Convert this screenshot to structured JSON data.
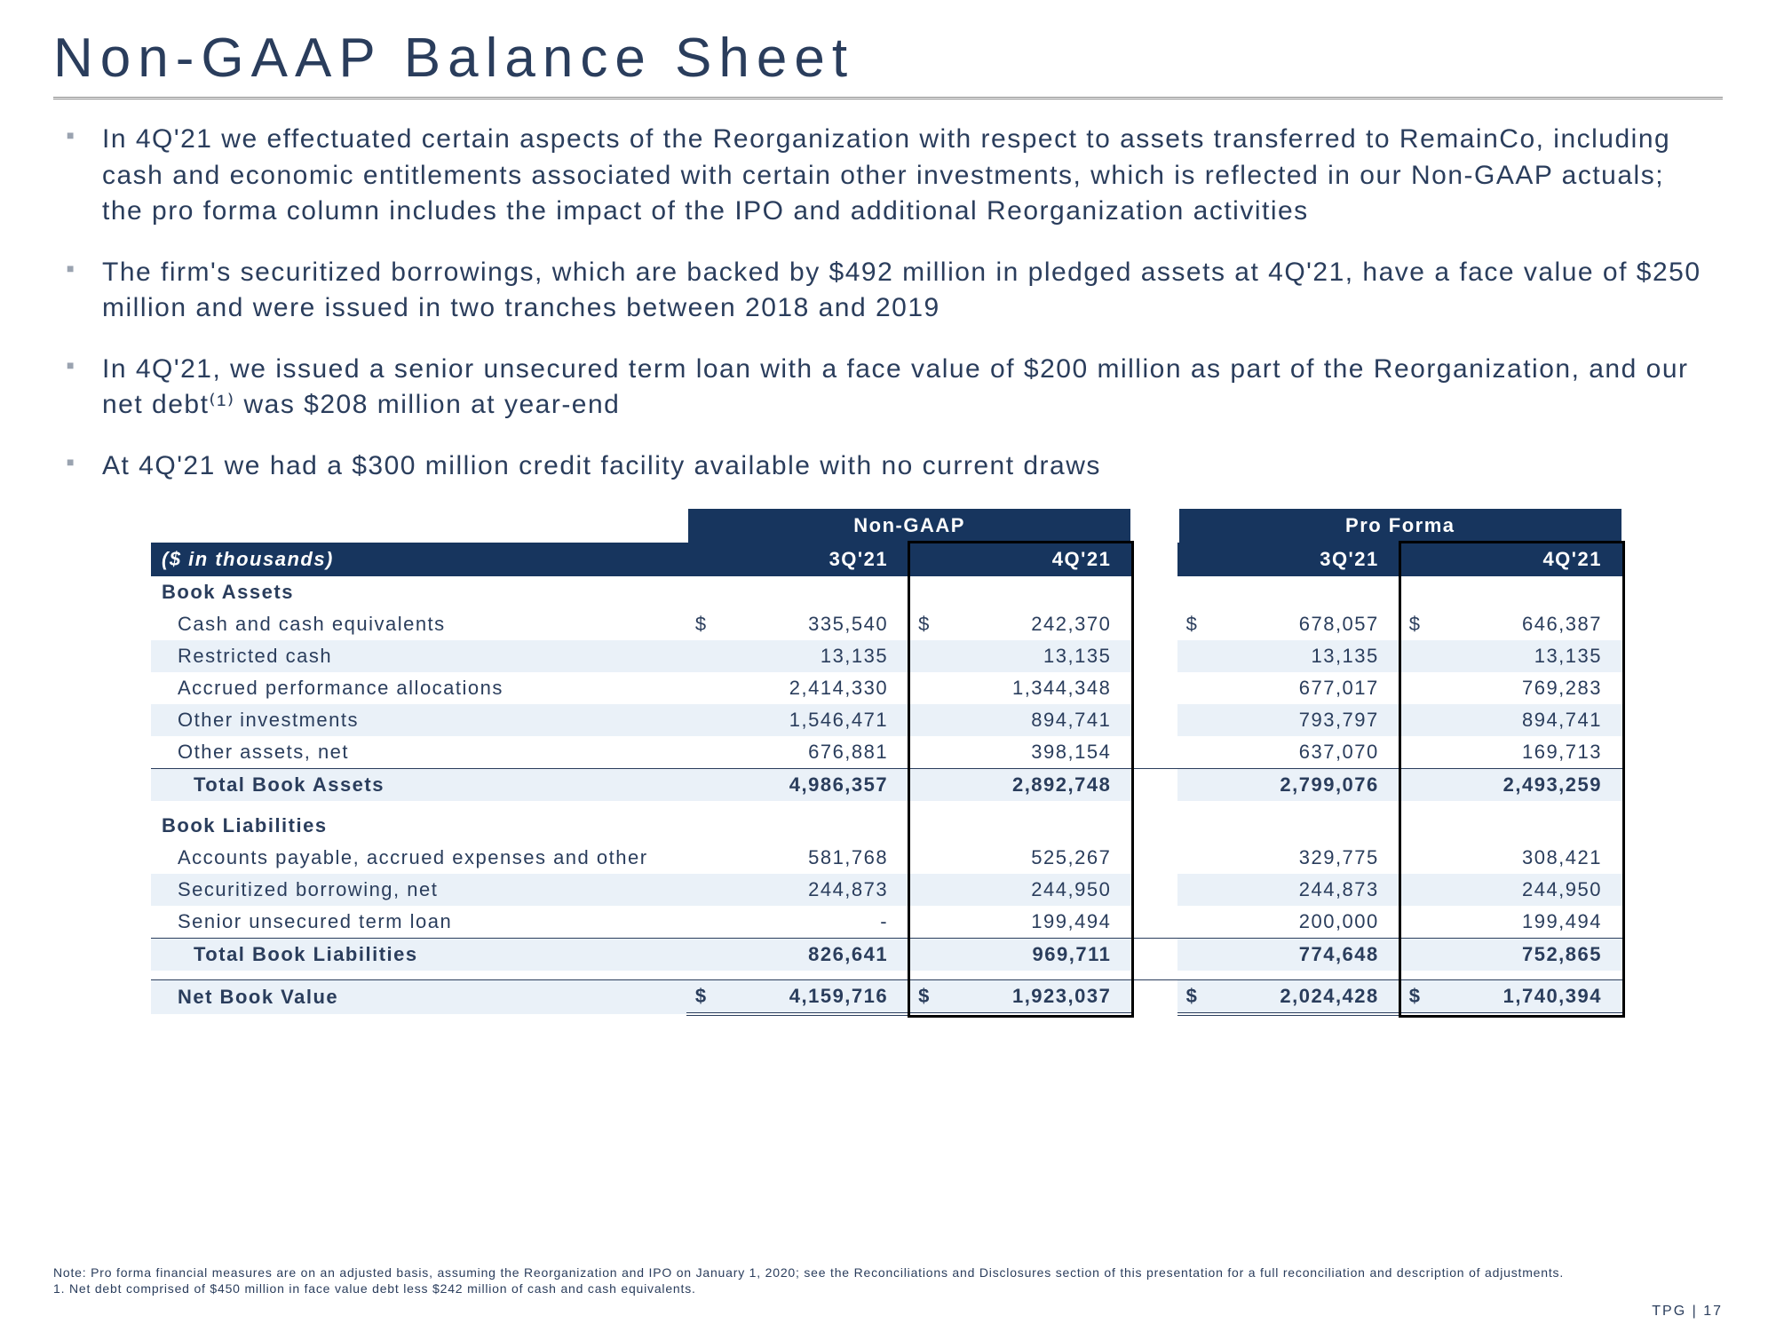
{
  "title": "Non-GAAP Balance Sheet",
  "bullets": [
    "In 4Q'21 we effectuated certain aspects of the Reorganization with respect to assets transferred to RemainCo, including cash and economic entitlements associated with certain other investments, which is reflected in our Non-GAAP actuals; the pro forma column includes the impact of the IPO and additional Reorganization activities",
    "The firm's securitized borrowings, which are backed by $492 million in pledged assets at 4Q'21, have a face value of $250 million and were issued in two tranches between 2018 and 2019",
    "In 4Q'21, we issued a senior unsecured term loan with a face value of $200 million as part of the Reorganization, and our net debt⁽¹⁾ was $208 million at year-end",
    "At 4Q'21 we had a $300 million credit facility available with no current draws"
  ],
  "table": {
    "unitLabel": "($ in thousands)",
    "group1": "Non-GAAP",
    "group2": "Pro Forma",
    "cols": [
      "3Q'21",
      "4Q'21",
      "3Q'21",
      "4Q'21"
    ],
    "assetsHeader": "Book Assets",
    "assetRows": [
      {
        "label": "Cash and cash equivalents",
        "v": [
          "335,540",
          "242,370",
          "678,057",
          "646,387"
        ],
        "dollar": true
      },
      {
        "label": "Restricted cash",
        "v": [
          "13,135",
          "13,135",
          "13,135",
          "13,135"
        ]
      },
      {
        "label": "Accrued performance allocations",
        "v": [
          "2,414,330",
          "1,344,348",
          "677,017",
          "769,283"
        ]
      },
      {
        "label": "Other investments",
        "v": [
          "1,546,471",
          "894,741",
          "793,797",
          "894,741"
        ]
      },
      {
        "label": "Other assets, net",
        "v": [
          "676,881",
          "398,154",
          "637,070",
          "169,713"
        ]
      }
    ],
    "assetsTotalLabel": "Total Book Assets",
    "assetsTotal": [
      "4,986,357",
      "2,892,748",
      "2,799,076",
      "2,493,259"
    ],
    "liabHeader": "Book Liabilities",
    "liabRows": [
      {
        "label": "Accounts payable, accrued expenses and other",
        "v": [
          "581,768",
          "525,267",
          "329,775",
          "308,421"
        ]
      },
      {
        "label": "Securitized borrowing, net",
        "v": [
          "244,873",
          "244,950",
          "244,873",
          "244,950"
        ]
      },
      {
        "label": "Senior unsecured term loan",
        "v": [
          "-",
          "199,494",
          "200,000",
          "199,494"
        ]
      }
    ],
    "liabTotalLabel": "Total Book Liabilities",
    "liabTotal": [
      "826,641",
      "969,711",
      "774,648",
      "752,865"
    ],
    "netLabel": "Net Book Value",
    "netValues": [
      "4,159,716",
      "1,923,037",
      "2,024,428",
      "1,740,394"
    ]
  },
  "footnotes": [
    "Note: Pro forma financial measures are on an adjusted basis, assuming the Reorganization and IPO on January 1, 2020; see the Reconciliations and Disclosures section of this presentation for a full reconciliation and description of adjustments.",
    "1. Net debt comprised of $450 million in face value debt less $242 million of cash and cash equivalents."
  ],
  "pageLabel": "TPG | 17",
  "colors": {
    "headerBg": "#17355e",
    "shade": "#eaf1f8",
    "text": "#2a3d5c"
  }
}
